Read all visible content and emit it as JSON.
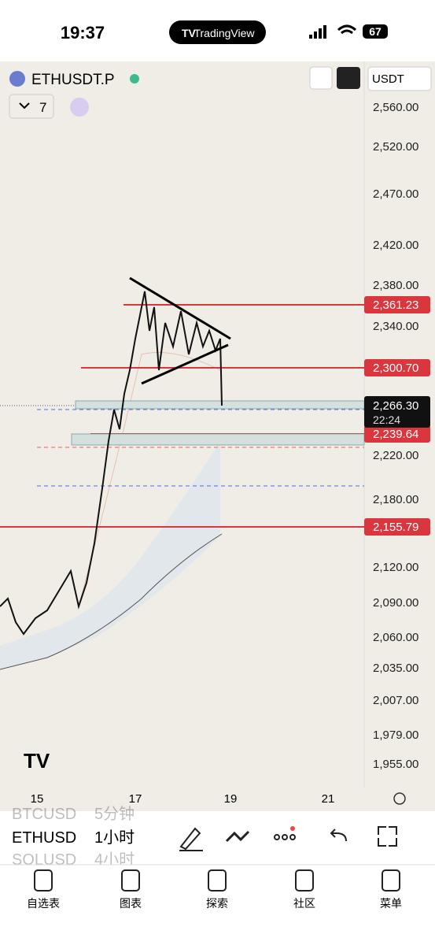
{
  "status_bar": {
    "time": "19:37",
    "app": "TradingView",
    "battery": "67"
  },
  "header": {
    "symbol": "ETHUSDT.P",
    "currency": "USDT",
    "indicator_count": "7"
  },
  "price_axis": [
    "2,560.00",
    "2,520.00",
    "2,470.00",
    "2,420.00",
    "2,380.00",
    "2,340.00",
    "2,220.00",
    "2,180.00",
    "2,120.00",
    "2,090.00",
    "2,060.00",
    "2,035.00",
    "2,007.00",
    "1,979.00",
    "1,955.00"
  ],
  "price_tags": [
    "2,361.23",
    "2,300.70",
    "2,239.64",
    "2,155.79"
  ],
  "current_price": {
    "price": "2,266.30",
    "countdown": "22:24"
  },
  "time_axis": [
    "15",
    "17",
    "19",
    "21"
  ],
  "symbol_picker": [
    {
      "symbol": "BTCUSD",
      "interval": "5分钟"
    },
    {
      "symbol": "ETHUSD",
      "interval": "1小时"
    },
    {
      "symbol": "SOLUSD",
      "interval": "4小时"
    }
  ],
  "tabs": [
    "自选表",
    "图表",
    "探索",
    "社区",
    "菜单"
  ]
}
